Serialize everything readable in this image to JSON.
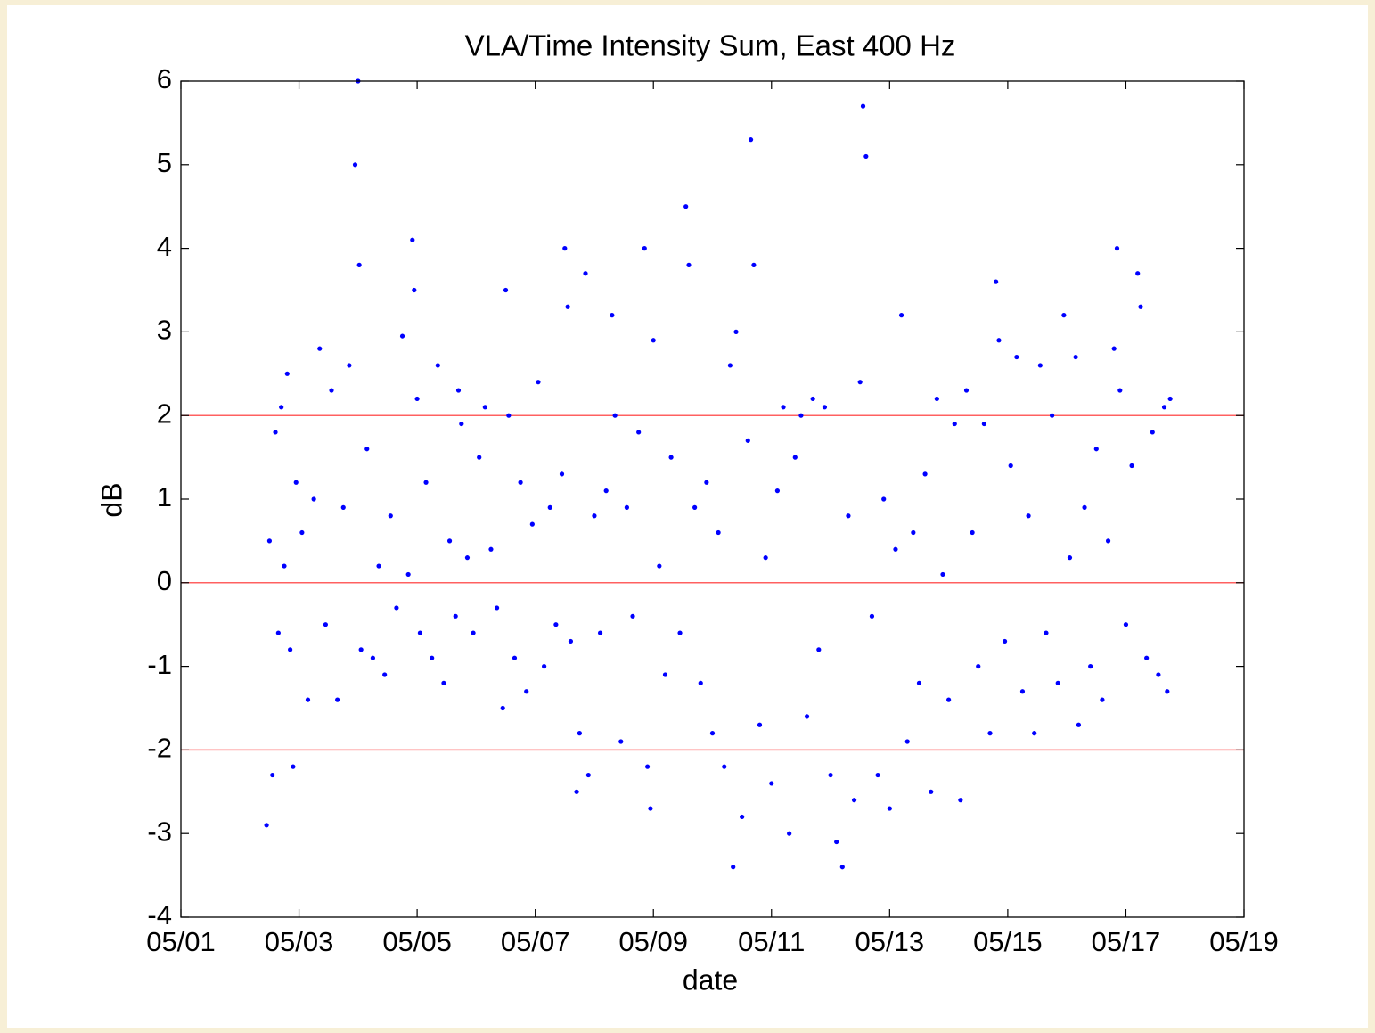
{
  "chart_data": {
    "type": "scatter",
    "title": "VLA/Time Intensity Sum, East 400 Hz",
    "x_label": "date",
    "y_label": "dB",
    "color": "#0000ff",
    "reference_lines": {
      "values": [
        -2,
        0,
        2
      ],
      "color": "#ff6060"
    },
    "xlim": [
      1,
      19
    ],
    "xticks": [
      {
        "value": 1,
        "label": "05/01"
      },
      {
        "value": 3,
        "label": "05/03"
      },
      {
        "value": 5,
        "label": "05/05"
      },
      {
        "value": 7,
        "label": "05/07"
      },
      {
        "value": 9,
        "label": "05/09"
      },
      {
        "value": 11,
        "label": "05/11"
      },
      {
        "value": 13,
        "label": "05/13"
      },
      {
        "value": 15,
        "label": "05/15"
      },
      {
        "value": 17,
        "label": "05/17"
      },
      {
        "value": 19,
        "label": "05/19"
      }
    ],
    "ylim": [
      -4,
      6
    ],
    "yticks": [
      -4,
      -3,
      -2,
      -1,
      0,
      1,
      2,
      3,
      4,
      5,
      6
    ],
    "x": [
      2.45,
      2.5,
      2.55,
      2.6,
      2.65,
      2.7,
      2.75,
      2.8,
      2.85,
      2.9,
      2.95,
      3.05,
      3.15,
      3.25,
      3.35,
      3.45,
      3.55,
      3.65,
      3.75,
      3.85,
      3.95,
      4.0,
      4.02,
      4.05,
      4.15,
      4.25,
      4.35,
      4.45,
      4.55,
      4.65,
      4.75,
      4.85,
      4.92,
      4.95,
      5.0,
      5.05,
      5.15,
      5.25,
      5.35,
      5.45,
      5.55,
      5.65,
      5.7,
      5.75,
      5.85,
      5.95,
      6.05,
      6.15,
      6.25,
      6.35,
      6.45,
      6.5,
      6.55,
      6.65,
      6.75,
      6.85,
      6.95,
      7.05,
      7.15,
      7.25,
      7.35,
      7.45,
      7.5,
      7.55,
      7.6,
      7.7,
      7.75,
      7.85,
      7.9,
      8.0,
      8.1,
      8.2,
      8.3,
      8.35,
      8.45,
      8.55,
      8.65,
      8.75,
      8.85,
      8.9,
      8.95,
      9.0,
      9.1,
      9.2,
      9.3,
      9.45,
      9.55,
      9.6,
      9.7,
      9.8,
      9.9,
      10.0,
      10.1,
      10.2,
      10.3,
      10.35,
      10.4,
      10.5,
      10.6,
      10.65,
      10.7,
      10.8,
      10.9,
      11.0,
      11.1,
      11.2,
      11.3,
      11.4,
      11.5,
      11.6,
      11.7,
      11.8,
      11.9,
      12.0,
      12.1,
      12.2,
      12.3,
      12.4,
      12.5,
      12.55,
      12.6,
      12.7,
      12.8,
      12.9,
      13.0,
      13.1,
      13.2,
      13.3,
      13.4,
      13.5,
      13.6,
      13.7,
      13.8,
      13.9,
      14.0,
      14.1,
      14.2,
      14.3,
      14.4,
      14.5,
      14.6,
      14.7,
      14.8,
      14.85,
      14.95,
      15.05,
      15.15,
      15.25,
      15.35,
      15.45,
      15.55,
      15.65,
      15.75,
      15.85,
      15.95,
      16.05,
      16.15,
      16.2,
      16.3,
      16.4,
      16.5,
      16.6,
      16.7,
      16.8,
      16.85,
      16.9,
      17.0,
      17.1,
      17.2,
      17.25,
      17.35,
      17.45,
      17.55,
      17.65,
      17.7,
      17.75
    ],
    "values": [
      -2.9,
      0.5,
      -2.3,
      1.8,
      -0.6,
      2.1,
      0.2,
      2.5,
      -0.8,
      -2.2,
      1.2,
      0.6,
      -1.4,
      1.0,
      2.8,
      -0.5,
      2.3,
      -1.4,
      0.9,
      2.6,
      5.0,
      6.0,
      3.8,
      -0.8,
      1.6,
      -0.9,
      0.2,
      -1.1,
      0.8,
      -0.3,
      2.95,
      0.1,
      4.1,
      3.5,
      2.2,
      -0.6,
      1.2,
      -0.9,
      2.6,
      -1.2,
      0.5,
      -0.4,
      2.3,
      1.9,
      0.3,
      -0.6,
      1.5,
      2.1,
      0.4,
      -0.3,
      -1.5,
      3.5,
      2.0,
      -0.9,
      1.2,
      -1.3,
      0.7,
      2.4,
      -1.0,
      0.9,
      -0.5,
      1.3,
      4.0,
      3.3,
      -0.7,
      -2.5,
      -1.8,
      3.7,
      -2.3,
      0.8,
      -0.6,
      1.1,
      3.2,
      2.0,
      -1.9,
      0.9,
      -0.4,
      1.8,
      4.0,
      -2.2,
      -2.7,
      2.9,
      0.2,
      -1.1,
      1.5,
      -0.6,
      4.5,
      3.8,
      0.9,
      -1.2,
      1.2,
      -1.8,
      0.6,
      -2.2,
      2.6,
      -3.4,
      3.0,
      -2.8,
      1.7,
      5.3,
      3.8,
      -1.7,
      0.3,
      -2.4,
      1.1,
      2.1,
      -3.0,
      1.5,
      2.0,
      -1.6,
      2.2,
      -0.8,
      2.1,
      -2.3,
      -3.1,
      -3.4,
      0.8,
      -2.6,
      2.4,
      5.7,
      5.1,
      -0.4,
      -2.3,
      1.0,
      -2.7,
      0.4,
      3.2,
      -1.9,
      0.6,
      -1.2,
      1.3,
      -2.5,
      2.2,
      0.1,
      -1.4,
      1.9,
      -2.6,
      2.3,
      0.6,
      -1.0,
      1.9,
      -1.8,
      3.6,
      2.9,
      -0.7,
      1.4,
      2.7,
      -1.3,
      0.8,
      -1.8,
      2.6,
      -0.6,
      2.0,
      -1.2,
      3.2,
      0.3,
      2.7,
      -1.7,
      0.9,
      -1.0,
      1.6,
      -1.4,
      0.5,
      2.8,
      4.0,
      2.3,
      -0.5,
      1.4,
      3.7,
      3.3,
      -0.9,
      1.8,
      -1.1,
      2.1,
      -1.3,
      2.2
    ]
  }
}
